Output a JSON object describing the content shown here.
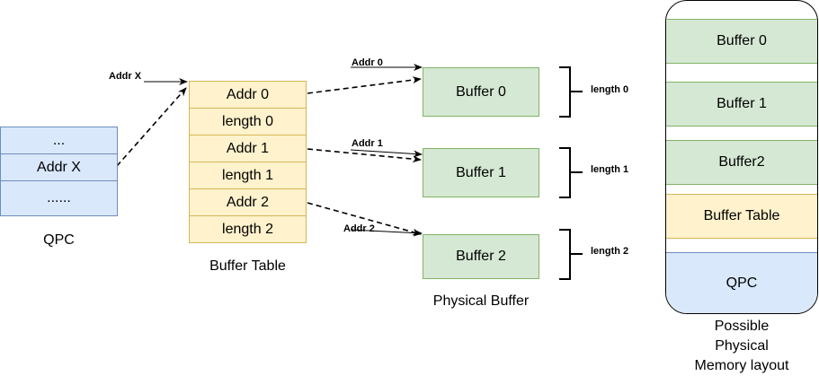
{
  "qpc": {
    "rows": [
      "...",
      "Addr X",
      "......"
    ],
    "caption": "QPC"
  },
  "buffer_table": {
    "rows": [
      "Addr 0",
      "length 0",
      "Addr 1",
      "length 1",
      "Addr 2",
      "length 2"
    ],
    "caption": "Buffer Table"
  },
  "physical": {
    "buffers": [
      "Buffer 0",
      "Buffer 1",
      "Buffer 2"
    ],
    "lengths": [
      "length 0",
      "length 1",
      "length 2"
    ],
    "caption": "Physical Buffer"
  },
  "arrows": {
    "addr_x": "Addr X",
    "addr_0": "Addr 0",
    "addr_1": "Addr 1",
    "addr_2": "Addr 2"
  },
  "memory": {
    "blocks": [
      "Buffer 0",
      "Buffer 1",
      "Buffer2",
      "Buffer Table",
      "QPC"
    ],
    "caption_lines": [
      "Possible",
      "Physical",
      "Memory layout"
    ]
  }
}
